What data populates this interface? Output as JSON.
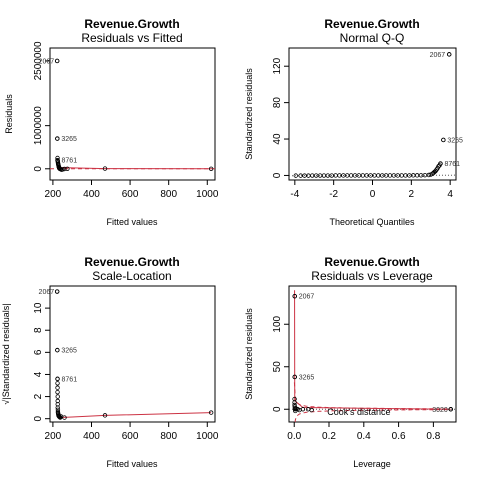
{
  "chart_data": [
    {
      "type": "scatter",
      "title": "Revenue.Growth",
      "subtitle": "Residuals vs Fitted",
      "xlabel": "Fitted values",
      "ylabel": "Residuals",
      "xlim": [
        185,
        1040
      ],
      "ylim": [
        -260000,
        2800000
      ],
      "xticks": [
        200,
        400,
        600,
        800,
        1000
      ],
      "yticks": [
        0,
        1000000,
        2500000
      ],
      "ytick_labels": [
        "0",
        "1000000",
        "2500000"
      ],
      "reference_line": {
        "y": 0,
        "style": "dashed",
        "color": "#cc3344"
      },
      "smoother": {
        "x": [
          220,
          470,
          1020
        ],
        "y": [
          30000,
          5000,
          0
        ],
        "color": "#cc3344"
      },
      "labeled_points": [
        {
          "label": "2067",
          "x": 222,
          "y": 2500000
        },
        {
          "label": "3265",
          "x": 223,
          "y": 700000
        },
        {
          "label": "8761",
          "x": 224,
          "y": 200000
        }
      ],
      "points": {
        "x": [
          222,
          223,
          224,
          224,
          225,
          226,
          227,
          228,
          229,
          230,
          231,
          232,
          233,
          234,
          235,
          236,
          240,
          245,
          250,
          260,
          275,
          470,
          1020
        ],
        "y": [
          2500000,
          700000,
          200000,
          250000,
          180000,
          150000,
          120000,
          100000,
          80000,
          60000,
          40000,
          30000,
          20000,
          10000,
          5000,
          0,
          -10000,
          -20000,
          -15000,
          -5000,
          0,
          5000,
          0
        ]
      }
    },
    {
      "type": "scatter",
      "title": "Revenue.Growth",
      "subtitle": "Normal Q-Q",
      "xlabel": "Theoretical Quantiles",
      "ylabel": "Standardized residuals",
      "xlim": [
        -4.3,
        4.3
      ],
      "ylim": [
        -5,
        140
      ],
      "xticks": [
        -4,
        -2,
        0,
        2,
        4
      ],
      "yticks": [
        0,
        40,
        80,
        120
      ],
      "reference_line": {
        "x": [
          -4.3,
          4.3
        ],
        "y": [
          -0.3,
          0.3
        ],
        "style": "dotted",
        "color": "#555555"
      },
      "labeled_points": [
        {
          "label": "2067",
          "x": 3.95,
          "y": 133
        },
        {
          "label": "3265",
          "x": 3.65,
          "y": 39
        },
        {
          "label": "8761",
          "x": 3.5,
          "y": 13
        }
      ],
      "points": {
        "x": [
          -3.95,
          -3.7,
          -3.5,
          -3.3,
          -3.1,
          -2.9,
          -2.7,
          -2.5,
          -2.3,
          -2.1,
          -1.9,
          -1.7,
          -1.5,
          -1.3,
          -1.1,
          -0.9,
          -0.7,
          -0.5,
          -0.3,
          -0.1,
          0.1,
          0.3,
          0.5,
          0.7,
          0.9,
          1.1,
          1.3,
          1.5,
          1.7,
          1.9,
          2.1,
          2.3,
          2.5,
          2.7,
          2.9,
          3.0,
          3.1,
          3.15,
          3.2,
          3.25,
          3.3,
          3.35,
          3.4,
          3.45,
          3.5,
          3.65,
          3.95
        ],
        "y": [
          -0.2,
          -0.2,
          -0.2,
          -0.2,
          -0.1,
          -0.1,
          -0.1,
          -0.1,
          -0.1,
          -0.1,
          0,
          0,
          0,
          0,
          0,
          0,
          0,
          0,
          0,
          0,
          0,
          0,
          0,
          0,
          0,
          0,
          0,
          0,
          0,
          0,
          0.1,
          0.1,
          0.2,
          0.3,
          0.5,
          1,
          2,
          3,
          4,
          5,
          6.5,
          8,
          10,
          11,
          13,
          39,
          133
        ]
      }
    },
    {
      "type": "scatter",
      "title": "Revenue.Growth",
      "subtitle": "Scale-Location",
      "xlabel": "Fitted values",
      "ylabel": "√|Standardized residuals|",
      "xlim": [
        185,
        1040
      ],
      "ylim": [
        -0.3,
        12
      ],
      "xticks": [
        200,
        400,
        600,
        800,
        1000
      ],
      "yticks": [
        0,
        2,
        4,
        6,
        8,
        10
      ],
      "smoother": {
        "x": [
          225,
          300,
          470,
          1020
        ],
        "y": [
          0.1,
          0.15,
          0.3,
          0.55
        ],
        "color": "#cc3344"
      },
      "labeled_points": [
        {
          "label": "2067",
          "x": 222,
          "y": 11.5
        },
        {
          "label": "3265",
          "x": 223,
          "y": 6.2
        },
        {
          "label": "8761",
          "x": 224,
          "y": 3.6
        }
      ],
      "points": {
        "x": [
          222,
          223,
          224,
          224,
          224,
          224,
          225,
          225,
          225,
          225,
          226,
          226,
          227,
          228,
          229,
          230,
          232,
          235,
          238,
          242,
          260,
          470,
          1020
        ],
        "y": [
          11.5,
          6.2,
          3.6,
          3.2,
          2.8,
          2.4,
          2.0,
          1.6,
          1.3,
          1.0,
          0.8,
          0.6,
          0.5,
          0.4,
          0.3,
          0.25,
          0.2,
          0.15,
          0.1,
          0.2,
          0.1,
          0.3,
          0.55
        ]
      }
    },
    {
      "type": "scatter",
      "title": "Revenue.Growth",
      "subtitle": "Residuals vs Leverage",
      "xlabel": "Leverage",
      "ylabel": "Standardized residuals",
      "xlim": [
        -0.03,
        0.93
      ],
      "ylim": [
        -15,
        145
      ],
      "xticks": [
        0.0,
        0.2,
        0.4,
        0.6,
        0.8
      ],
      "xtick_labels": [
        "0.0",
        "0.2",
        "0.4",
        "0.6",
        "0.8"
      ],
      "yticks": [
        0,
        50,
        100
      ],
      "annotation": "Cook's distance",
      "reference_line": {
        "y": 0,
        "style": "dotted",
        "color": "#555555"
      },
      "labeled_points": [
        {
          "label": "2067",
          "x": 0.003,
          "y": 133
        },
        {
          "label": "3265",
          "x": 0.003,
          "y": 38
        },
        {
          "label": "3020",
          "x": 0.9,
          "y": 0
        }
      ],
      "points": {
        "x": [
          0.003,
          0.003,
          0.002,
          0.002,
          0.002,
          0.003,
          0.004,
          0.005,
          0.006,
          0.01,
          0.02,
          0.03,
          0.05,
          0.08,
          0.1,
          0.9
        ],
        "y": [
          133,
          38,
          12,
          8,
          5,
          3,
          1,
          0,
          -2,
          1,
          0,
          -1,
          0,
          0,
          -1,
          0
        ]
      }
    }
  ]
}
